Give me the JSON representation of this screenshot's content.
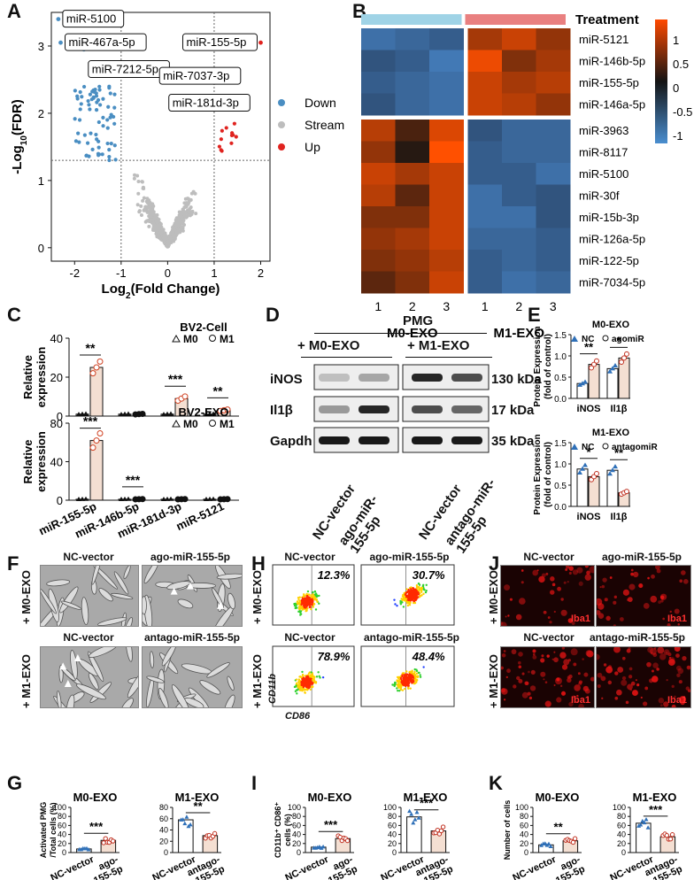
{
  "panels": {
    "A": "A",
    "B": "B",
    "C": "C",
    "D": "D",
    "E": "E",
    "F": "F",
    "G": "G",
    "H": "H",
    "I": "I",
    "J": "J",
    "K": "K"
  },
  "chart_data": [
    {
      "id": "A",
      "type": "scatter",
      "xlabel": "Log2(Fold Change)",
      "ylabel": "-Log10(FDR)",
      "xlim": [
        -2.5,
        2.2
      ],
      "ylim": [
        -0.2,
        3.5
      ],
      "xticks": [
        "-2",
        "-1",
        "0",
        "1",
        "2"
      ],
      "yticks": [
        "0",
        "1",
        "2",
        "3"
      ],
      "thresholds": {
        "fc": [
          -1,
          1
        ],
        "fdr": 1.3
      },
      "legend": [
        {
          "name": "Down",
          "color": "#4a8ec2"
        },
        {
          "name": "Stream",
          "color": "#bdbdbd"
        },
        {
          "name": "Up",
          "color": "#e0231f"
        }
      ],
      "labels": [
        {
          "text": "miR-5100",
          "x": -2.35,
          "y": 3.4
        },
        {
          "text": "miR-467a-5p",
          "x": -2.3,
          "y": 3.05
        },
        {
          "text": "miR-7212-5p",
          "x": -1.8,
          "y": 2.65
        },
        {
          "text": "miR-155-5p",
          "x": 2.0,
          "y": 3.05
        },
        {
          "text": "miR-7037-3p",
          "x": 1.5,
          "y": 2.55
        },
        {
          "text": "miR-181d-3p",
          "x": 1.7,
          "y": 2.15
        }
      ]
    },
    {
      "id": "B",
      "type": "heatmap",
      "legend_title": "Treatment",
      "groups": [
        "M0-EXO",
        "M1-EXO"
      ],
      "columns": [
        "1",
        "2",
        "3",
        "1",
        "2",
        "3"
      ],
      "rows": [
        "miR-5121",
        "miR-146b-5p",
        "miR-155-5p",
        "miR-146a-5p",
        "miR-3963",
        "miR-8117",
        "miR-5100",
        "miR-30f",
        "miR-15b-3p",
        "miR-126a-5p",
        "miR-122-5p",
        "miR-7034-5p"
      ],
      "values": [
        [
          -1.0,
          -0.9,
          -0.8,
          0.8,
          1.0,
          0.7
        ],
        [
          -0.7,
          -0.8,
          -1.1,
          1.2,
          0.6,
          0.8
        ],
        [
          -0.8,
          -0.9,
          -1.0,
          1.0,
          0.8,
          0.9
        ],
        [
          -0.7,
          -0.9,
          -1.0,
          1.0,
          0.9,
          0.7
        ],
        [
          0.9,
          0.3,
          1.1,
          -0.7,
          -0.9,
          -0.9
        ],
        [
          0.7,
          0.1,
          1.3,
          -0.8,
          -0.9,
          -0.9
        ],
        [
          1.0,
          0.8,
          1.0,
          -0.8,
          -0.8,
          -1.0
        ],
        [
          0.9,
          0.4,
          1.0,
          -1.0,
          -0.8,
          -0.7
        ],
        [
          0.6,
          0.6,
          1.0,
          -1.0,
          -1.0,
          -0.7
        ],
        [
          0.7,
          0.8,
          1.0,
          -0.9,
          -0.9,
          -0.8
        ],
        [
          0.6,
          0.7,
          0.9,
          -0.8,
          -0.9,
          -0.8
        ],
        [
          0.4,
          0.6,
          1.0,
          -0.8,
          -1.0,
          -0.9
        ]
      ],
      "colorbar_ticks": [
        "1",
        "0.5",
        "0",
        "-0.5",
        "-1"
      ]
    },
    {
      "id": "C-top",
      "type": "bar",
      "ylabel": "Relative expression",
      "title": "BV2-Cell",
      "legend": [
        "M0",
        "M1"
      ],
      "categories": [
        "miR-155-5p",
        "miR-146b-5p",
        "miR-181d-3p",
        "miR-5121"
      ],
      "ylim": [
        0,
        40
      ],
      "yticks": [
        "0",
        "20",
        "40"
      ],
      "series": [
        {
          "name": "M0",
          "values": [
            1,
            1,
            1,
            1
          ]
        },
        {
          "name": "M1",
          "values": [
            25,
            1,
            9,
            3
          ]
        }
      ],
      "sig": [
        "**",
        "",
        "***",
        "**"
      ]
    },
    {
      "id": "C-bottom",
      "type": "bar",
      "ylabel": "Relative expression",
      "title": "BV2-EXO",
      "legend": [
        "M0",
        "M1"
      ],
      "categories": [
        "miR-155-5p",
        "miR-146b-5p",
        "miR-181d-3p",
        "miR-5121"
      ],
      "ylim": [
        0,
        80
      ],
      "yticks": [
        "0",
        "40",
        "80"
      ],
      "series": [
        {
          "name": "M0",
          "values": [
            1,
            1,
            1,
            1
          ]
        },
        {
          "name": "M1",
          "values": [
            62,
            1,
            1,
            1
          ]
        }
      ],
      "sig": [
        "***",
        "***",
        "",
        ""
      ]
    },
    {
      "id": "E-top",
      "type": "bar",
      "title": "M0-EXO",
      "ylabel": "Protein Expression (fold of control)",
      "legend": [
        "NC",
        "agomiR"
      ],
      "categories": [
        "iNOS",
        "Il1β"
      ],
      "ylim": [
        0,
        1.5
      ],
      "yticks": [
        "0.0",
        "0.5",
        "1.0",
        "1.5"
      ],
      "series": [
        {
          "name": "NC",
          "values": [
            0.35,
            0.7
          ]
        },
        {
          "name": "agomiR",
          "values": [
            0.8,
            0.95
          ]
        }
      ],
      "sig": [
        "**",
        "*"
      ]
    },
    {
      "id": "E-bottom",
      "type": "bar",
      "title": "M1-EXO",
      "ylabel": "Protein Expression (fold of control)",
      "legend": [
        "NC",
        "antagomiR"
      ],
      "categories": [
        "iNOS",
        "Il1β"
      ],
      "ylim": [
        0,
        1.5
      ],
      "yticks": [
        "0.0",
        "0.5",
        "1.0",
        "1.5"
      ],
      "series": [
        {
          "name": "NC",
          "values": [
            0.88,
            0.85
          ]
        },
        {
          "name": "antagomiR",
          "values": [
            0.7,
            0.32
          ]
        }
      ],
      "sig": [
        "*",
        "**"
      ]
    },
    {
      "id": "G-left",
      "type": "bar",
      "title": "M0-EXO",
      "ylabel": "Activated PMG /Total cells (%)",
      "categories": [
        "NC-vector",
        "ago-miR-155-5p"
      ],
      "values": [
        8,
        27
      ],
      "ylim": [
        0,
        100
      ],
      "yticks": [
        "0",
        "20",
        "40",
        "60",
        "80",
        "100"
      ],
      "sig": "***"
    },
    {
      "id": "G-right",
      "type": "bar",
      "title": "M1-EXO",
      "categories": [
        "NC-vector",
        "antago-miR-155-5p"
      ],
      "values": [
        58,
        30
      ],
      "ylim": [
        0,
        80
      ],
      "yticks": [
        "0",
        "20",
        "40",
        "60",
        "80"
      ],
      "sig": "**"
    },
    {
      "id": "I-left",
      "type": "bar",
      "title": "M0-EXO",
      "ylabel": "CD11b+ CD86+ cells (%)",
      "categories": [
        "NC-vector",
        "ago-miR-155-5p"
      ],
      "values": [
        12,
        31
      ],
      "ylim": [
        0,
        100
      ],
      "yticks": [
        "0",
        "20",
        "40",
        "60",
        "80",
        "100"
      ],
      "sig": "***"
    },
    {
      "id": "I-right",
      "type": "bar",
      "title": "M1-EXO",
      "categories": [
        "NC-vector",
        "antago-miR-155-5p"
      ],
      "values": [
        79,
        48
      ],
      "ylim": [
        0,
        100
      ],
      "yticks": [
        "0",
        "20",
        "40",
        "60",
        "80",
        "100"
      ],
      "sig": "***"
    },
    {
      "id": "K-left",
      "type": "bar",
      "title": "M0-EXO",
      "ylabel": "Number of cells",
      "categories": [
        "NC-vector",
        "ago-miR-155-5p"
      ],
      "values": [
        17,
        26
      ],
      "ylim": [
        0,
        100
      ],
      "yticks": [
        "0",
        "20",
        "40",
        "60",
        "80",
        "100"
      ],
      "sig": "**"
    },
    {
      "id": "K-right",
      "type": "bar",
      "title": "M1-EXO",
      "categories": [
        "NC-vector",
        "antago-miR-155-5p"
      ],
      "values": [
        65,
        35
      ],
      "ylim": [
        0,
        100
      ],
      "yticks": [
        "0",
        "20",
        "40",
        "60",
        "80",
        "100"
      ],
      "sig": "***"
    }
  ],
  "D": {
    "title": "PMG",
    "groups": [
      "+ M0-EXO",
      "+ M1-EXO"
    ],
    "bands": [
      "iNOS",
      "Il1β",
      "Gapdh"
    ],
    "sizes": [
      "130 kDa",
      "17 kDa",
      "35 kDa"
    ],
    "lanes": [
      "NC-vector",
      "ago-miR-155-5p",
      "NC-vector",
      "antago-miR-155-5p"
    ]
  },
  "F": {
    "row_labels": [
      "+ M0-EXO",
      "+ M1-EXO"
    ],
    "col_labels": [
      "NC-vector",
      "ago-miR-155-5p",
      "NC-vector",
      "antago-miR-155-5p"
    ]
  },
  "H": {
    "row_labels": [
      "+ M0-EXO",
      "+ M1-EXO"
    ],
    "col_labels": [
      "NC-vector",
      "ago-miR-155-5p",
      "NC-vector",
      "antago-miR-155-5p"
    ],
    "percent": [
      "12.3%",
      "30.7%",
      "78.9%",
      "48.4%"
    ],
    "xaxis": "CD86",
    "yaxis": "CD11b"
  },
  "J": {
    "row_labels": [
      "+ M0-EXO",
      "+ M1-EXO"
    ],
    "col_labels": [
      "NC-vector",
      "ago-miR-155-5p",
      "NC-vector",
      "antago-miR-155-5p"
    ],
    "stain": "Iba1"
  }
}
